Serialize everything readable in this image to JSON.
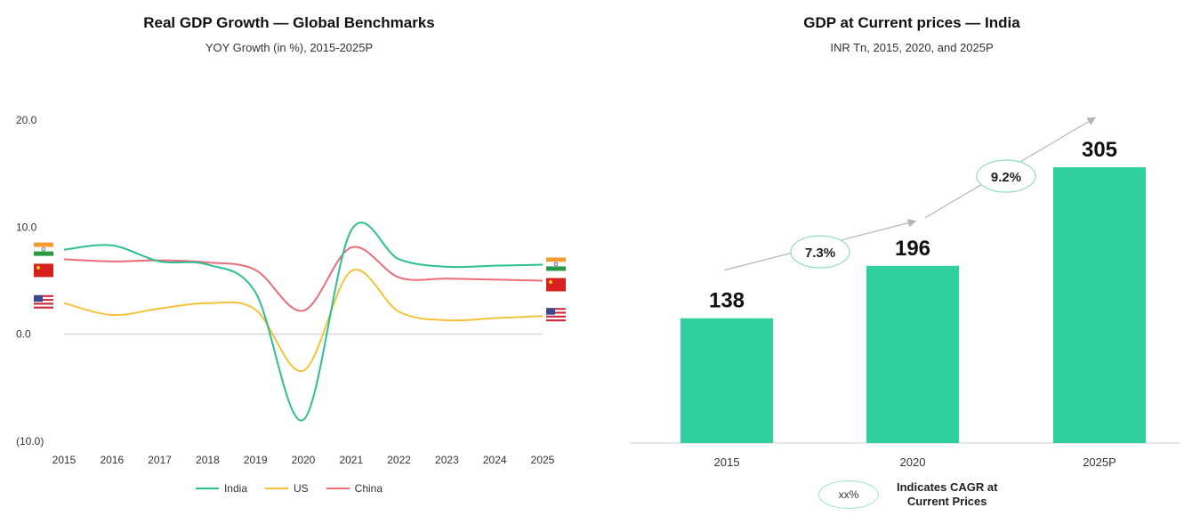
{
  "chart_data": [
    {
      "type": "line",
      "title": "Real GDP Growth — Global Benchmarks",
      "subtitle": "YOY Growth (in %), 2015-2025P",
      "x": [
        "2015",
        "2016",
        "2017",
        "2018",
        "2019",
        "2020",
        "2021",
        "2022",
        "2023",
        "2024",
        "2025"
      ],
      "y_ticks": [
        "20.0",
        "10.0",
        "0.0",
        "(10.0)"
      ],
      "ylim": [
        -10,
        20
      ],
      "grid": false,
      "legend_position": "bottom",
      "series": [
        {
          "name": "India",
          "color": "#2dbf94",
          "values": [
            7.9,
            8.3,
            6.8,
            6.5,
            3.9,
            -8.0,
            9.7,
            7.0,
            6.3,
            6.4,
            6.5
          ]
        },
        {
          "name": "US",
          "color": "#f5c33b",
          "values": [
            2.9,
            1.8,
            2.4,
            2.9,
            2.3,
            -3.4,
            5.9,
            2.1,
            1.3,
            1.5,
            1.7
          ]
        },
        {
          "name": "China",
          "color": "#ec6b7a",
          "values": [
            7.0,
            6.8,
            6.9,
            6.7,
            6.0,
            2.2,
            8.1,
            5.3,
            5.2,
            5.1,
            5.0
          ]
        }
      ],
      "flag_icons": {
        "left": [
          "india-flag-icon",
          "china-flag-icon",
          "us-flag-icon"
        ],
        "right": [
          "india-flag-icon",
          "china-flag-icon",
          "us-flag-icon"
        ]
      }
    },
    {
      "type": "bar",
      "title": "GDP at Current prices — India",
      "subtitle": "INR Tn, 2015, 2020, and 2025P",
      "categories": [
        "2015",
        "2020",
        "2025P"
      ],
      "values": [
        138,
        196,
        305
      ],
      "data_labels": [
        "138",
        "196",
        "305"
      ],
      "bar_color": "#2fcf9e",
      "ylim": [
        0,
        305
      ],
      "cagr_labels": [
        "7.3%",
        "9.2%"
      ],
      "cagr_key": {
        "sample": "xx%",
        "text_line1": "Indicates CAGR at",
        "text_line2": "Current Prices"
      }
    }
  ]
}
